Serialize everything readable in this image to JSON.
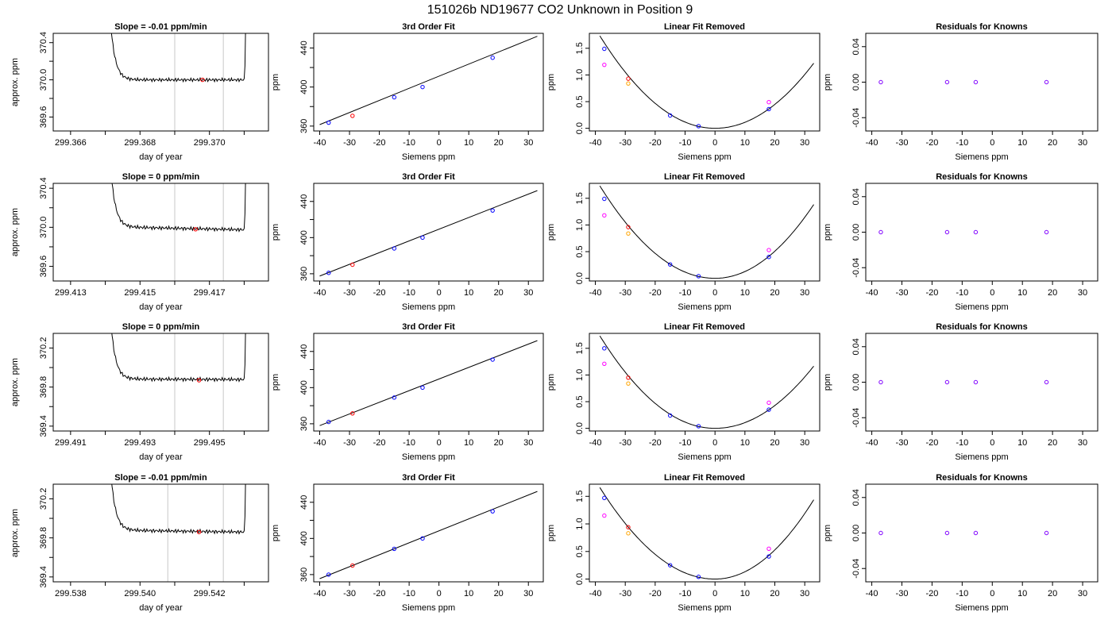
{
  "figure_title": "151026b     ND19677    CO2 Unknown in Position  9",
  "colors": {
    "trace": "#000000",
    "window_line": "#c8c8c8",
    "known": "#0000ff",
    "unknown": "#ff0000",
    "residual_known": "#8000ff",
    "raw_unknown": "#ff00ff",
    "raw_known_orange": "#ffa500",
    "fit_line": "#000000"
  },
  "chart_data": [
    {
      "row": 1,
      "type": "line",
      "title": "Slope =  -0.01  ppm/min",
      "xlabel": "day of year",
      "ylabel": "approx. ppm",
      "xlim": [
        299.3655,
        299.3717
      ],
      "ylim": [
        369.45,
        370.5
      ],
      "xticks": [
        299.366,
        299.367,
        299.368,
        299.369,
        299.37,
        299.371
      ],
      "xtick_labels": [
        "299.366",
        "",
        "299.368",
        "",
        "299.370",
        ""
      ],
      "yticks": [
        369.6,
        369.8,
        370.0,
        370.2,
        370.4
      ],
      "ytick_labels": [
        "369.6",
        "",
        "370.0",
        "",
        "370.4"
      ],
      "x_start": 299.3671,
      "x_end": 299.371,
      "plateau": 370.0,
      "plateau_slope": 0.0,
      "window": [
        299.369,
        299.3704
      ],
      "mean_point": [
        299.3698,
        370.0
      ]
    },
    {
      "row": 2,
      "type": "line",
      "title": "Slope =  0  ppm/min",
      "xlabel": "day of year",
      "ylabel": "approx. ppm",
      "xlim": [
        299.4125,
        299.4187
      ],
      "ylim": [
        369.45,
        370.45
      ],
      "xticks": [
        299.413,
        299.414,
        299.415,
        299.416,
        299.417,
        299.418
      ],
      "xtick_labels": [
        "299.413",
        "",
        "299.415",
        "",
        "299.417",
        ""
      ],
      "yticks": [
        369.6,
        369.8,
        370.0,
        370.2,
        370.4
      ],
      "ytick_labels": [
        "369.6",
        "",
        "370.0",
        "",
        "370.4"
      ],
      "x_start": 299.4141,
      "x_end": 299.418,
      "plateau": 369.99,
      "plateau_slope": -0.03,
      "window": [
        299.416,
        299.4174
      ],
      "mean_point": [
        299.4166,
        369.98
      ]
    },
    {
      "row": 3,
      "type": "line",
      "title": "Slope =  0  ppm/min",
      "xlabel": "day of year",
      "ylabel": "approx. ppm",
      "xlim": [
        299.4905,
        299.4967
      ],
      "ylim": [
        369.35,
        370.35
      ],
      "xticks": [
        299.491,
        299.492,
        299.493,
        299.494,
        299.495,
        299.496
      ],
      "xtick_labels": [
        "299.491",
        "",
        "299.493",
        "",
        "299.495",
        ""
      ],
      "yticks": [
        369.4,
        369.6,
        369.8,
        370.0,
        370.2
      ],
      "ytick_labels": [
        "369.4",
        "",
        "369.8",
        "",
        "370.2"
      ],
      "x_start": 299.4921,
      "x_end": 299.496,
      "plateau": 369.88,
      "plateau_slope": -0.005,
      "window": [
        299.494,
        299.4954
      ],
      "mean_point": [
        299.4947,
        369.87
      ]
    },
    {
      "row": 4,
      "type": "line",
      "title": "Slope =  -0.01  ppm/min",
      "xlabel": "day of year",
      "ylabel": "approx. ppm",
      "xlim": [
        299.5375,
        299.5437
      ],
      "ylim": [
        369.35,
        370.35
      ],
      "xticks": [
        299.538,
        299.539,
        299.54,
        299.541,
        299.542,
        299.543
      ],
      "xtick_labels": [
        "299.538",
        "",
        "299.540",
        "",
        "299.542",
        ""
      ],
      "yticks": [
        369.4,
        369.6,
        369.8,
        370.0,
        370.2
      ],
      "ytick_labels": [
        "369.4",
        "",
        "369.8",
        "",
        "370.2"
      ],
      "x_start": 299.5391,
      "x_end": 299.543,
      "plateau": 369.87,
      "plateau_slope": -0.02,
      "window": [
        299.5408,
        299.5424
      ],
      "mean_point": [
        299.5417,
        369.86
      ]
    },
    {
      "row": 1,
      "type": "line",
      "title": "3rd Order Fit",
      "xlabel": "Siemens ppm",
      "ylabel": "ppm",
      "xlim": [
        -42,
        35
      ],
      "ylim": [
        355,
        455
      ],
      "xticks": [
        -40,
        -30,
        -20,
        -10,
        0,
        10,
        20,
        30
      ],
      "yticks": [
        360,
        380,
        400,
        420,
        440
      ],
      "ytick_labels": [
        "360",
        "",
        "400",
        "",
        "440"
      ],
      "line_x": [
        -40,
        33
      ],
      "line_y": [
        361.5,
        452
      ],
      "known_x": [
        -37,
        -15,
        -5.5,
        18
      ],
      "known_y": [
        363.5,
        389.5,
        400,
        430
      ],
      "unknown_x": [
        -29
      ],
      "unknown_y": [
        370.5
      ]
    },
    {
      "row": 2,
      "type": "line",
      "title": "3rd Order Fit",
      "xlabel": "Siemens ppm",
      "ylabel": "ppm",
      "xlim": [
        -42,
        35
      ],
      "ylim": [
        352,
        460
      ],
      "xticks": [
        -40,
        -30,
        -20,
        -10,
        0,
        10,
        20,
        30
      ],
      "yticks": [
        360,
        380,
        400,
        420,
        440
      ],
      "ytick_labels": [
        "360",
        "",
        "400",
        "",
        "440"
      ],
      "line_x": [
        -40,
        33
      ],
      "line_y": [
        357.5,
        452
      ],
      "known_x": [
        -37,
        -15,
        -5.5,
        18
      ],
      "known_y": [
        361,
        388,
        400,
        430
      ],
      "unknown_x": [
        -29
      ],
      "unknown_y": [
        370
      ]
    },
    {
      "row": 3,
      "type": "line",
      "title": "3rd Order Fit",
      "xlabel": "Siemens ppm",
      "ylabel": "ppm",
      "xlim": [
        -42,
        35
      ],
      "ylim": [
        352,
        460
      ],
      "xticks": [
        -40,
        -30,
        -20,
        -10,
        0,
        10,
        20,
        30
      ],
      "yticks": [
        360,
        380,
        400,
        420,
        440
      ],
      "ytick_labels": [
        "360",
        "",
        "400",
        "",
        "440"
      ],
      "line_x": [
        -40,
        33
      ],
      "line_y": [
        358,
        452
      ],
      "known_x": [
        -37,
        -15,
        -5.5,
        18
      ],
      "known_y": [
        362,
        389,
        400,
        431
      ],
      "unknown_x": [
        -29
      ],
      "unknown_y": [
        371.5
      ]
    },
    {
      "row": 4,
      "type": "line",
      "title": "3rd Order Fit",
      "xlabel": "Siemens ppm",
      "ylabel": "ppm",
      "xlim": [
        -42,
        35
      ],
      "ylim": [
        352,
        460
      ],
      "xticks": [
        -40,
        -30,
        -20,
        -10,
        0,
        10,
        20,
        30
      ],
      "yticks": [
        360,
        380,
        400,
        420,
        440
      ],
      "ytick_labels": [
        "360",
        "",
        "400",
        "",
        "440"
      ],
      "line_x": [
        -40,
        33
      ],
      "line_y": [
        355.5,
        452
      ],
      "known_x": [
        -37,
        -15,
        -5.5,
        18
      ],
      "known_y": [
        360,
        388.5,
        400,
        430
      ],
      "unknown_x": [
        -29
      ],
      "unknown_y": [
        370
      ]
    },
    {
      "row": 1,
      "type": "scatter",
      "title": "Linear Fit Removed",
      "xlabel": "Siemens ppm",
      "ylabel": "ppm",
      "xlim": [
        -42,
        35
      ],
      "ylim": [
        -0.05,
        1.78
      ],
      "xticks": [
        -40,
        -30,
        -20,
        -10,
        0,
        10,
        20,
        30
      ],
      "yticks": [
        0.0,
        0.5,
        1.0,
        1.5
      ],
      "ytick_labels": [
        "0.0",
        "0.5",
        "1.0",
        "1.5"
      ],
      "curve_range": [
        -38.5,
        33
      ],
      "curve_vertex": [
        0,
        0.0
      ],
      "curve_left": 0.00117,
      "curve_right": 0.00112,
      "known_x": [
        -37,
        -15,
        -5.5,
        18
      ],
      "known_y": [
        1.49,
        0.24,
        0.04,
        0.36
      ],
      "raw_known_x": [
        -37,
        -29,
        18
      ],
      "raw_known_y": [
        1.19,
        0.84,
        0.49
      ],
      "unknown_x": [
        -29
      ],
      "unknown_y": [
        0.93
      ]
    },
    {
      "row": 2,
      "type": "scatter",
      "title": "Linear Fit Removed",
      "xlabel": "Siemens ppm",
      "ylabel": "ppm",
      "xlim": [
        -42,
        35
      ],
      "ylim": [
        -0.05,
        1.78
      ],
      "xticks": [
        -40,
        -30,
        -20,
        -10,
        0,
        10,
        20,
        30
      ],
      "yticks": [
        0.0,
        0.5,
        1.0,
        1.5
      ],
      "ytick_labels": [
        "0.0",
        "0.5",
        "1.0",
        "1.5"
      ],
      "curve_range": [
        -38.5,
        33
      ],
      "curve_vertex": [
        0,
        0.0
      ],
      "curve_left": 0.00117,
      "curve_right": 0.00127,
      "known_x": [
        -37,
        -15,
        -5.5,
        18
      ],
      "known_y": [
        1.49,
        0.26,
        0.04,
        0.4
      ],
      "raw_known_x": [
        -37,
        -29,
        18
      ],
      "raw_known_y": [
        1.18,
        0.84,
        0.53
      ],
      "unknown_x": [
        -29
      ],
      "unknown_y": [
        0.96
      ]
    },
    {
      "row": 3,
      "type": "scatter",
      "title": "Linear Fit Removed",
      "xlabel": "Siemens ppm",
      "ylabel": "ppm",
      "xlim": [
        -42,
        35
      ],
      "ylim": [
        -0.05,
        1.78
      ],
      "xticks": [
        -40,
        -30,
        -20,
        -10,
        0,
        10,
        20,
        30
      ],
      "yticks": [
        0.0,
        0.5,
        1.0,
        1.5
      ],
      "ytick_labels": [
        "0.0",
        "0.5",
        "1.0",
        "1.5"
      ],
      "curve_range": [
        -38.5,
        33
      ],
      "curve_vertex": [
        0,
        0.0
      ],
      "curve_left": 0.00117,
      "curve_right": 0.00107,
      "known_x": [
        -37,
        -15,
        -5.5,
        18
      ],
      "known_y": [
        1.5,
        0.24,
        0.04,
        0.35
      ],
      "raw_known_x": [
        -37,
        -29,
        18
      ],
      "raw_known_y": [
        1.21,
        0.84,
        0.48
      ],
      "unknown_x": [
        -29
      ],
      "unknown_y": [
        0.95
      ]
    },
    {
      "row": 4,
      "type": "scatter",
      "title": "Linear Fit Removed",
      "xlabel": "Siemens ppm",
      "ylabel": "ppm",
      "xlim": [
        -42,
        35
      ],
      "ylim": [
        -0.05,
        1.72
      ],
      "xticks": [
        -40,
        -30,
        -20,
        -10,
        0,
        10,
        20,
        30
      ],
      "yticks": [
        0.0,
        0.5,
        1.0,
        1.5
      ],
      "ytick_labels": [
        "0.0",
        "0.5",
        "1.0",
        "1.5"
      ],
      "curve_range": [
        -38.5,
        33
      ],
      "curve_vertex": [
        0,
        0.0
      ],
      "curve_left": 0.00112,
      "curve_right": 0.00132,
      "known_x": [
        -37,
        -15,
        -5.5,
        18
      ],
      "known_y": [
        1.47,
        0.25,
        0.04,
        0.41
      ],
      "raw_known_x": [
        -37,
        -29,
        18
      ],
      "raw_known_y": [
        1.15,
        0.83,
        0.55
      ],
      "unknown_x": [
        -29
      ],
      "unknown_y": [
        0.94
      ]
    },
    {
      "row": 1,
      "type": "scatter",
      "title": "Residuals for Knowns",
      "xlabel": "Siemens ppm",
      "ylabel": "ppm",
      "xlim": [
        -42,
        35
      ],
      "ylim": [
        -0.055,
        0.055
      ],
      "xticks": [
        -40,
        -30,
        -20,
        -10,
        0,
        10,
        20,
        30
      ],
      "yticks": [
        -0.04,
        0.0,
        0.04
      ],
      "ytick_labels": [
        "-0.04",
        "0.00",
        "0.04"
      ],
      "known_x": [
        -37,
        -15,
        -5.5,
        18
      ],
      "known_y": [
        0,
        0,
        0,
        0
      ]
    },
    {
      "row": 2,
      "type": "scatter",
      "title": "Residuals for Knowns",
      "xlabel": "Siemens ppm",
      "ylabel": "ppm",
      "xlim": [
        -42,
        35
      ],
      "ylim": [
        -0.055,
        0.055
      ],
      "xticks": [
        -40,
        -30,
        -20,
        -10,
        0,
        10,
        20,
        30
      ],
      "yticks": [
        -0.04,
        0.0,
        0.04
      ],
      "ytick_labels": [
        "-0.04",
        "0.00",
        "0.04"
      ],
      "known_x": [
        -37,
        -15,
        -5.5,
        18
      ],
      "known_y": [
        0,
        0,
        0,
        0
      ]
    },
    {
      "row": 3,
      "type": "scatter",
      "title": "Residuals for Knowns",
      "xlabel": "Siemens ppm",
      "ylabel": "ppm",
      "xlim": [
        -42,
        35
      ],
      "ylim": [
        -0.055,
        0.055
      ],
      "xticks": [
        -40,
        -30,
        -20,
        -10,
        0,
        10,
        20,
        30
      ],
      "yticks": [
        -0.04,
        0.0,
        0.04
      ],
      "ytick_labels": [
        "-0.04",
        "0.00",
        "0.04"
      ],
      "known_x": [
        -37,
        -15,
        -5.5,
        18
      ],
      "known_y": [
        0,
        0,
        0,
        0
      ]
    },
    {
      "row": 4,
      "type": "scatter",
      "title": "Residuals for Knowns",
      "xlabel": "Siemens ppm",
      "ylabel": "ppm",
      "xlim": [
        -42,
        35
      ],
      "ylim": [
        -0.055,
        0.055
      ],
      "xticks": [
        -40,
        -30,
        -20,
        -10,
        0,
        10,
        20,
        30
      ],
      "yticks": [
        -0.04,
        0.0,
        0.04
      ],
      "ytick_labels": [
        "-0.04",
        "0.00",
        "0.04"
      ],
      "known_x": [
        -37,
        -15,
        -5.5,
        18
      ],
      "known_y": [
        0,
        0,
        0,
        0
      ]
    }
  ]
}
